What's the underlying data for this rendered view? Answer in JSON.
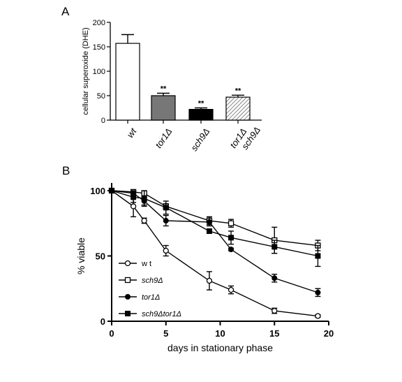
{
  "panels": {
    "a_label": "A",
    "b_label": "B"
  },
  "chart_data": [
    {
      "type": "bar",
      "panel": "A",
      "ylabel": "cellular superoxide (DHE)",
      "ylim": [
        0,
        200
      ],
      "yticks": [
        "0",
        "50",
        "100",
        "150",
        "200"
      ],
      "categories": [
        {
          "line1": "wt",
          "line2": ""
        },
        {
          "line1": "tor1Δ",
          "line2": ""
        },
        {
          "line1": "sch9Δ",
          "line2": ""
        },
        {
          "line1": "tor1Δ",
          "line2": "sch9Δ"
        }
      ],
      "values": [
        157,
        50,
        22,
        47
      ],
      "errors": [
        18,
        5,
        3,
        4
      ],
      "annotations": [
        "",
        "**",
        "**",
        "**"
      ],
      "fills": [
        "#ffffff",
        "#777777",
        "#000000",
        "hatch"
      ]
    },
    {
      "type": "line",
      "panel": "B",
      "xlabel": "days in stationary phase",
      "ylabel": "% viable",
      "xlim": [
        0,
        20
      ],
      "ylim": [
        0,
        100
      ],
      "xticks": [
        "0",
        "5",
        "10",
        "15",
        "20"
      ],
      "yticks": [
        "0",
        "50",
        "100"
      ],
      "legend_position": "bottom-left",
      "series": [
        {
          "name": "w t",
          "marker": "open-circle",
          "italic": false,
          "x": [
            0,
            2,
            3,
            5,
            9,
            11,
            15,
            19
          ],
          "y": [
            100,
            88,
            77,
            54,
            31,
            24,
            8,
            4
          ],
          "err": [
            0,
            8,
            2,
            4,
            7,
            3,
            2,
            1
          ]
        },
        {
          "name": "sch9Δ",
          "marker": "open-square",
          "italic": true,
          "x": [
            0,
            2,
            3,
            5,
            9,
            11,
            15,
            19
          ],
          "y": [
            100,
            99,
            98,
            88,
            77,
            75,
            62,
            58
          ],
          "err": [
            0,
            1,
            1,
            2,
            3,
            3,
            10,
            4
          ]
        },
        {
          "name": "tor1Δ",
          "marker": "filled-circle",
          "italic": true,
          "x": [
            0,
            2,
            3,
            5,
            9,
            11,
            15,
            19
          ],
          "y": [
            100,
            98,
            92,
            77,
            76,
            55,
            33,
            22
          ],
          "err": [
            0,
            2,
            3,
            4,
            3,
            1,
            3,
            3
          ]
        },
        {
          "name": "sch9Δtor1Δ",
          "marker": "filled-square",
          "italic": true,
          "x": [
            0,
            2,
            3,
            5,
            9,
            11,
            15,
            19
          ],
          "y": [
            100,
            95,
            94,
            87,
            69,
            64,
            57,
            50
          ],
          "err": [
            0,
            4,
            6,
            5,
            1,
            5,
            5,
            8
          ]
        }
      ]
    }
  ]
}
